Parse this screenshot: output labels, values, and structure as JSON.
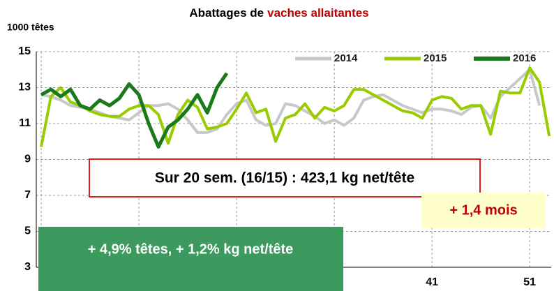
{
  "chart_data": {
    "type": "line",
    "title": [
      "Abattages de",
      "vaches allaitantes"
    ],
    "title_colors": [
      "#000000",
      "#c00000"
    ],
    "ylabel": "1000 têtes",
    "x": [
      1,
      2,
      3,
      4,
      5,
      6,
      7,
      8,
      9,
      10,
      11,
      12,
      13,
      14,
      15,
      16,
      17,
      18,
      19,
      20,
      21,
      22,
      23,
      24,
      25,
      26,
      27,
      28,
      29,
      30,
      31,
      32,
      33,
      34,
      35,
      36,
      37,
      38,
      39,
      40,
      41,
      42,
      43,
      44,
      45,
      46,
      47,
      48,
      49,
      50,
      51,
      52,
      53
    ],
    "xlim": [
      0.5,
      53.2
    ],
    "xticks": [
      1,
      11,
      21,
      31,
      41,
      51
    ],
    "ylim": [
      3,
      15
    ],
    "yticks": [
      3,
      5,
      7,
      9,
      11,
      13,
      15
    ],
    "grid": true,
    "legend": "top-right",
    "series": [
      {
        "name": "2014",
        "color": "#c8c8c8",
        "width": 4,
        "values": [
          12.6,
          12.5,
          12.3,
          12.0,
          11.9,
          11.8,
          11.6,
          11.4,
          11.3,
          11.2,
          11.6,
          12.0,
          12.0,
          12.1,
          11.8,
          11.2,
          10.5,
          10.5,
          10.7,
          11.5,
          12.1,
          12.3,
          11.2,
          10.9,
          11.0,
          12.1,
          12.0,
          11.7,
          11.4,
          11.0,
          11.2,
          10.9,
          11.3,
          12.3,
          12.5,
          12.6,
          12.3,
          12.0,
          11.8,
          11.6,
          11.8,
          11.8,
          11.7,
          11.5,
          11.9,
          12.0,
          11.3,
          12.5,
          13.0,
          13.5,
          14.0,
          12.0,
          null
        ]
      },
      {
        "name": "2015",
        "color": "#99cc00",
        "width": 4,
        "values": [
          9.7,
          12.5,
          13.0,
          12.2,
          12.0,
          11.7,
          11.5,
          11.4,
          11.4,
          11.8,
          12.0,
          12.0,
          11.5,
          9.9,
          11.5,
          12.3,
          11.9,
          10.7,
          10.8,
          11.0,
          11.8,
          12.7,
          11.6,
          11.8,
          10.0,
          11.3,
          11.5,
          12.1,
          11.3,
          11.9,
          11.7,
          12.0,
          12.9,
          12.9,
          12.6,
          12.3,
          12.0,
          11.7,
          11.6,
          11.3,
          12.3,
          12.5,
          12.4,
          11.8,
          12.0,
          12.0,
          10.4,
          12.8,
          12.7,
          12.7,
          14.1,
          13.3,
          10.3
        ]
      },
      {
        "name": "2016",
        "color": "#1a7a1a",
        "width": 5,
        "values": [
          12.6,
          12.9,
          12.5,
          12.9,
          12.0,
          11.8,
          12.3,
          12.0,
          12.4,
          13.2,
          12.6,
          11.0,
          9.7,
          10.8,
          11.2,
          11.8,
          12.6,
          11.6,
          13.0,
          13.8,
          null,
          null,
          null,
          null,
          null,
          null,
          null,
          null,
          null,
          null,
          null,
          null,
          null,
          null,
          null,
          null,
          null,
          null,
          null,
          null,
          null,
          null,
          null,
          null,
          null,
          null,
          null,
          null,
          null,
          null,
          null,
          null,
          null
        ]
      }
    ],
    "annotations": [
      "Sur 20 sem. (16/15) : 423,1 kg net/tête",
      "+ 1,4 mois",
      "+ 4,9% têtes, + 1,2% kg net/tête"
    ]
  }
}
